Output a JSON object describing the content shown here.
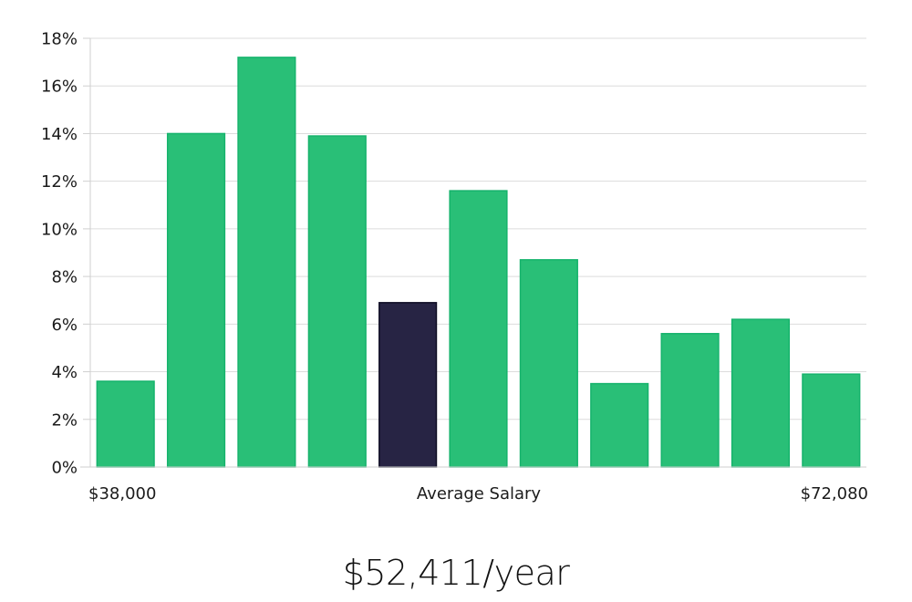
{
  "chart_data": {
    "type": "bar",
    "values": [
      3.6,
      14.0,
      17.2,
      13.9,
      6.9,
      11.6,
      8.7,
      3.5,
      5.6,
      6.2,
      3.9
    ],
    "highlight_index": 4,
    "ylim": [
      0,
      18
    ],
    "y_ticks": [
      "0%",
      "2%",
      "4%",
      "6%",
      "8%",
      "10%",
      "12%",
      "14%",
      "16%",
      "18%"
    ],
    "x_labels": {
      "left": "$38,000",
      "center": "Average Salary",
      "right": "$72,080"
    },
    "grid": true,
    "colors": {
      "bar": "#29bf77",
      "bar_edge": "#16b36c",
      "highlight": "#272444",
      "highlight_edge": "#0f0d24",
      "grid": "#dcdcdc"
    }
  },
  "summary": {
    "average_salary": "$52,411/year"
  }
}
